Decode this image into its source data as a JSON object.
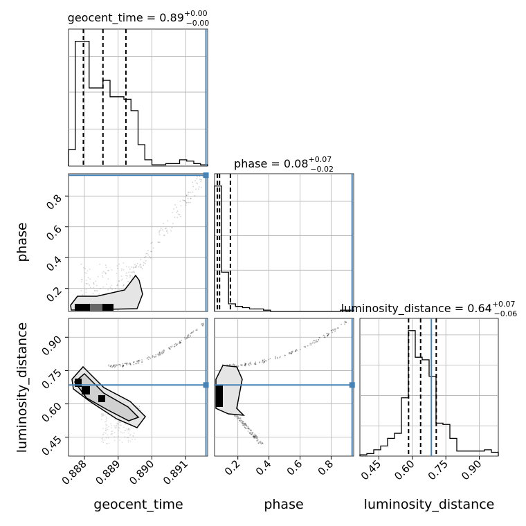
{
  "chart_data": {
    "type": "corner",
    "parameters": [
      "geocent_time",
      "phase",
      "luminosity_distance"
    ],
    "truth_color": "#4682b4",
    "truth": {
      "geocent_time": 0.8916,
      "phase": 0.935,
      "luminosity_distance": 0.685
    },
    "diag_titles": {
      "geocent_time": {
        "name": "geocent_time",
        "value": "0.89",
        "plus": "+0.00",
        "minus": "−0.00"
      },
      "phase": {
        "name": "phase",
        "value": "0.08",
        "plus": "+0.07",
        "minus": "−0.02"
      },
      "luminosity_distance": {
        "name": "luminosity_distance",
        "value": "0.64",
        "plus": "+0.07",
        "minus": "−0.06"
      }
    },
    "axis_labels": {
      "phase_y": "phase",
      "luminosity_distance_y": "luminosity_distance",
      "geocent_time_x": "geocent_time",
      "phase_x": "phase",
      "luminosity_distance_x": "luminosity_distance"
    },
    "ranges": {
      "geocent_time": [
        0.88753,
        0.89165
      ],
      "phase": [
        0.05,
        0.945
      ],
      "luminosity_distance": [
        0.365,
        0.985
      ]
    },
    "ticks": {
      "geocent_time": [
        "0.888",
        "0.889",
        "0.890",
        "0.891"
      ],
      "phase_x": [
        "0.2",
        "0.4",
        "0.6",
        "0.8"
      ],
      "phase_y": [
        "0.2",
        "0.4",
        "0.6",
        "0.8"
      ],
      "luminosity_distance": [
        "0.45",
        "0.60",
        "0.75",
        "0.90"
      ]
    },
    "tick_values": {
      "geocent_time": [
        0.888,
        0.889,
        0.89,
        0.891
      ],
      "phase": [
        0.2,
        0.4,
        0.6,
        0.8
      ],
      "luminosity_distance": [
        0.45,
        0.6,
        0.75,
        0.9
      ]
    },
    "quantiles": {
      "geocent_time": [
        0.88797,
        0.88855,
        0.88923
      ],
      "phase": [
        0.068,
        0.082,
        0.152
      ],
      "luminosity_distance": [
        0.583,
        0.637,
        0.707
      ]
    },
    "histograms": {
      "geocent_time": {
        "edges": [
          0.88753,
          0.88773,
          0.88794,
          0.88814,
          0.88835,
          0.88855,
          0.88876,
          0.88897,
          0.88917,
          0.88938,
          0.88959,
          0.88979,
          0.89,
          0.8902,
          0.89041,
          0.89062,
          0.89082,
          0.89103,
          0.89124,
          0.89144,
          0.89165
        ],
        "counts": [
          0.13,
          0.99,
          0.99,
          0.62,
          0.62,
          0.68,
          0.55,
          0.55,
          0.53,
          0.44,
          0.17,
          0.05,
          0.01,
          0.01,
          0.02,
          0.02,
          0.05,
          0.04,
          0.02,
          0.01
        ]
      },
      "phase": {
        "edges": [
          0.05,
          0.095,
          0.14,
          0.185,
          0.23,
          0.275,
          0.32,
          0.365,
          0.41,
          0.455,
          0.5,
          0.545,
          0.59,
          0.635,
          0.68,
          0.725,
          0.77,
          0.815,
          0.86,
          0.905,
          0.945
        ],
        "counts": [
          0.99,
          0.31,
          0.06,
          0.04,
          0.03,
          0.02,
          0.02,
          0.01,
          0.0,
          0.0,
          0.0,
          0.0,
          0.0,
          0.0,
          0.0,
          0.0,
          0.0,
          0.0,
          0.01,
          0.01
        ]
      },
      "luminosity_distance": {
        "edges": [
          0.365,
          0.396,
          0.427,
          0.458,
          0.489,
          0.52,
          0.551,
          0.582,
          0.613,
          0.644,
          0.675,
          0.706,
          0.737,
          0.768,
          0.799,
          0.83,
          0.861,
          0.892,
          0.923,
          0.954,
          0.985
        ],
        "counts": [
          0.01,
          0.02,
          0.05,
          0.08,
          0.14,
          0.18,
          0.46,
          0.99,
          0.78,
          0.76,
          0.63,
          0.26,
          0.25,
          0.14,
          0.04,
          0.04,
          0.04,
          0.04,
          0.05,
          0.03
        ]
      }
    },
    "grid": true
  }
}
